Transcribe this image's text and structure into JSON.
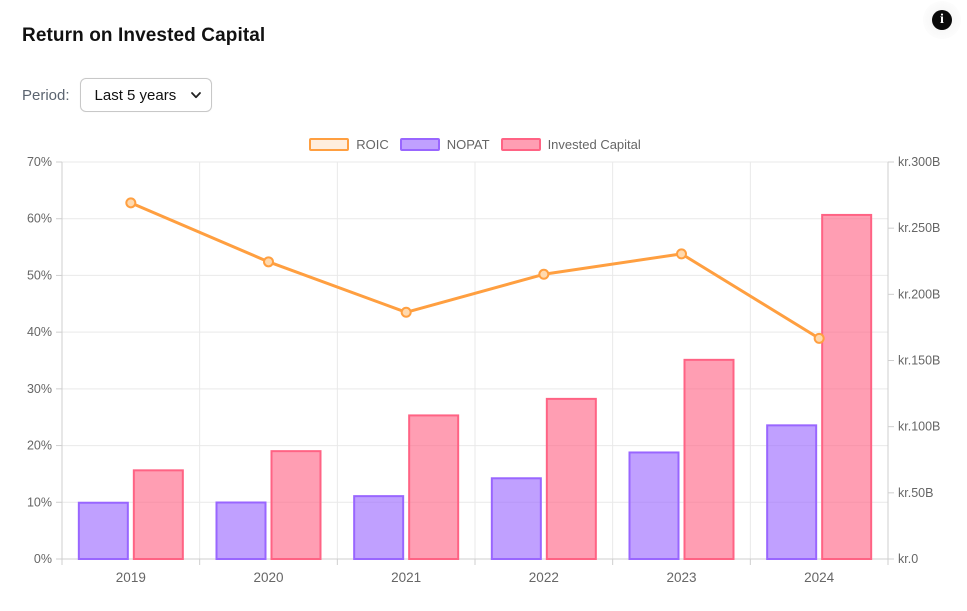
{
  "page": {
    "title": "Return on Invested Capital"
  },
  "header": {
    "info_icon_glyph": "i"
  },
  "controls": {
    "period_label": "Period:",
    "period_value": "Last 5 years",
    "period_options": [
      "Last 5 years"
    ]
  },
  "colors": {
    "grid": "#e9e9e9",
    "axis_border": "#cfcfcf",
    "tick_text": "#666666",
    "title_text": "#111111",
    "info_bg": "#0a0a0a"
  },
  "chart_data": {
    "type": "mixed",
    "title": "Return on Invested Capital",
    "categories": [
      "2019",
      "2020",
      "2021",
      "2022",
      "2023",
      "2024"
    ],
    "series": [
      {
        "name": "ROIC",
        "type": "line",
        "axis": "left",
        "unit": "%",
        "values": [
          62.8,
          52.4,
          43.5,
          50.2,
          53.8,
          38.9
        ],
        "color": "#ff9f40",
        "fill": "rgba(255,159,64,0.18)",
        "point_fill": "#ffd9ae"
      },
      {
        "name": "NOPAT",
        "type": "bar",
        "axis": "right",
        "unit": "kr B",
        "values": [
          42.5,
          42.7,
          47.5,
          61,
          80.5,
          101
        ],
        "color": "#9966ff",
        "fill": "rgba(153,102,255,0.62)"
      },
      {
        "name": "Invested Capital",
        "type": "bar",
        "axis": "right",
        "unit": "kr B",
        "values": [
          67,
          81.5,
          108.5,
          121,
          150.5,
          260
        ],
        "color": "#ff6384",
        "fill": "rgba(255,99,132,0.62)"
      }
    ],
    "left_axis": {
      "min": 0,
      "max": 70,
      "tick_labels": [
        "0%",
        "10%",
        "20%",
        "30%",
        "40%",
        "50%",
        "60%",
        "70%"
      ]
    },
    "right_axis": {
      "min": 0,
      "max": 300,
      "tick_labels": [
        "kr.0",
        "kr.50B",
        "kr.100B",
        "kr.150B",
        "kr.200B",
        "kr.250B",
        "kr.300B"
      ]
    },
    "legend_position": "top",
    "grid": true
  }
}
